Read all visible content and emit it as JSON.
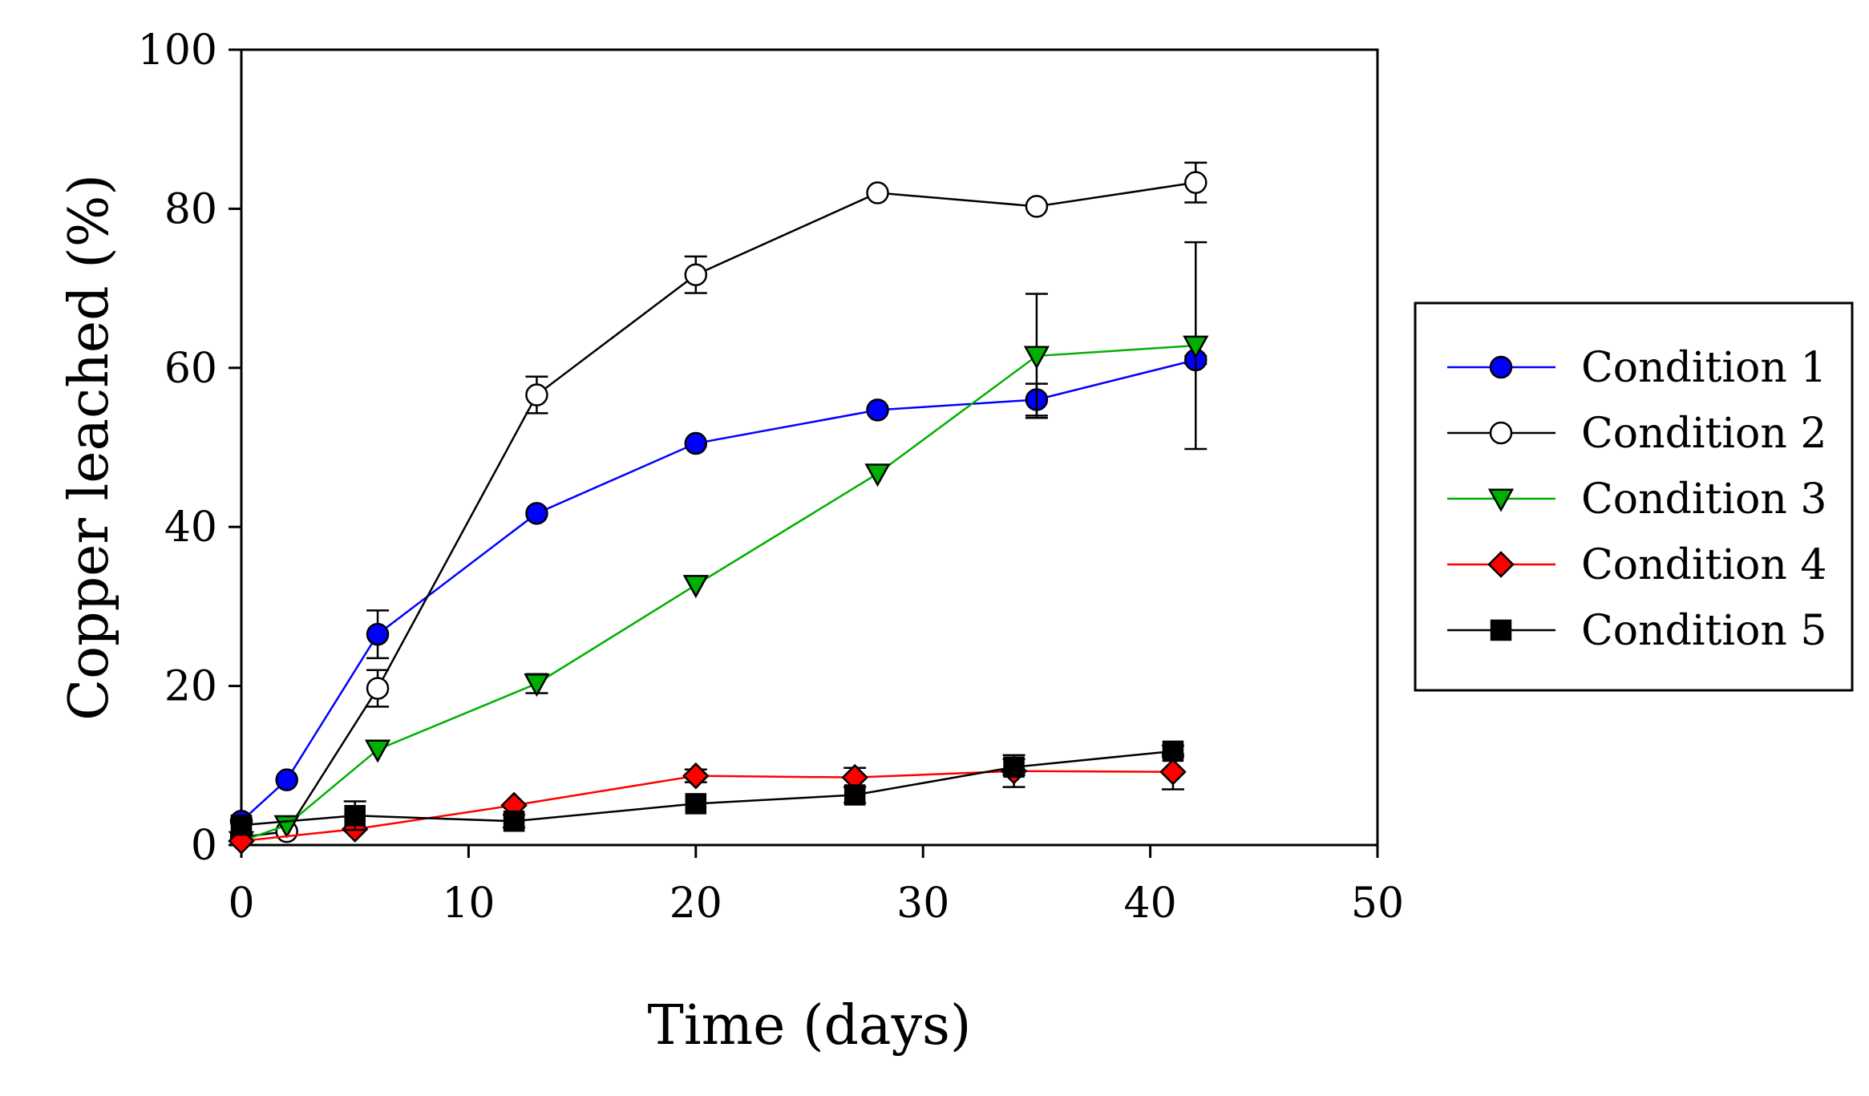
{
  "chart_data": {
    "type": "line",
    "title": "",
    "xlabel": "Time (days)",
    "ylabel": "Copper leached (%)",
    "xlim": [
      0,
      50
    ],
    "ylim": [
      0,
      100
    ],
    "x_ticks": [
      "0",
      "10",
      "20",
      "30",
      "40",
      "50"
    ],
    "y_ticks": [
      "0",
      "20",
      "40",
      "60",
      "80",
      "100"
    ],
    "grid": false,
    "legend_position": "right",
    "series": [
      {
        "name": "Condition 1",
        "color": "#0000ff",
        "marker": "circle",
        "marker_fill": "#0000ff",
        "x": [
          0,
          2,
          6,
          13,
          20,
          28,
          35,
          42
        ],
        "y": [
          3.0,
          8.2,
          26.5,
          41.7,
          50.5,
          54.7,
          56.0,
          61.0
        ],
        "err": [
          0,
          0,
          3.0,
          0,
          0,
          0,
          2.0,
          0.5
        ]
      },
      {
        "name": "Condition 2",
        "color": "#000000",
        "marker": "circle",
        "marker_fill": "#ffffff",
        "x": [
          0,
          2,
          6,
          13,
          20,
          28,
          35,
          42
        ],
        "y": [
          1.0,
          1.7,
          19.7,
          56.6,
          71.7,
          82.0,
          80.3,
          83.3
        ],
        "err": [
          0,
          0,
          2.3,
          2.3,
          2.3,
          0,
          0,
          2.5
        ]
      },
      {
        "name": "Condition 3",
        "color": "#00b000",
        "marker": "triangle-down",
        "marker_fill": "#00b000",
        "x": [
          0,
          2,
          6,
          13,
          20,
          28,
          35,
          42
        ],
        "y": [
          0.5,
          2.5,
          12.0,
          20.3,
          32.7,
          46.7,
          61.5,
          62.8
        ],
        "err": [
          0,
          0,
          0,
          1.2,
          0,
          0,
          7.8,
          13.0
        ]
      },
      {
        "name": "Condition 4",
        "color": "#ff0000",
        "marker": "diamond",
        "marker_fill": "#ff0000",
        "x": [
          0,
          5,
          12,
          20,
          27,
          34,
          41
        ],
        "y": [
          0.5,
          2.0,
          5.0,
          8.7,
          8.5,
          9.3,
          9.2
        ],
        "err": [
          0,
          0,
          0,
          0.8,
          1.2,
          2.0,
          2.2
        ]
      },
      {
        "name": "Condition 5",
        "color": "#000000",
        "marker": "square",
        "marker_fill": "#000000",
        "x": [
          0,
          5,
          12,
          20,
          27,
          34,
          41
        ],
        "y": [
          2.5,
          3.7,
          3.0,
          5.2,
          6.3,
          9.8,
          11.8
        ],
        "err": [
          0,
          1.8,
          0.8,
          0,
          1.0,
          1.0,
          0.7
        ]
      }
    ]
  }
}
